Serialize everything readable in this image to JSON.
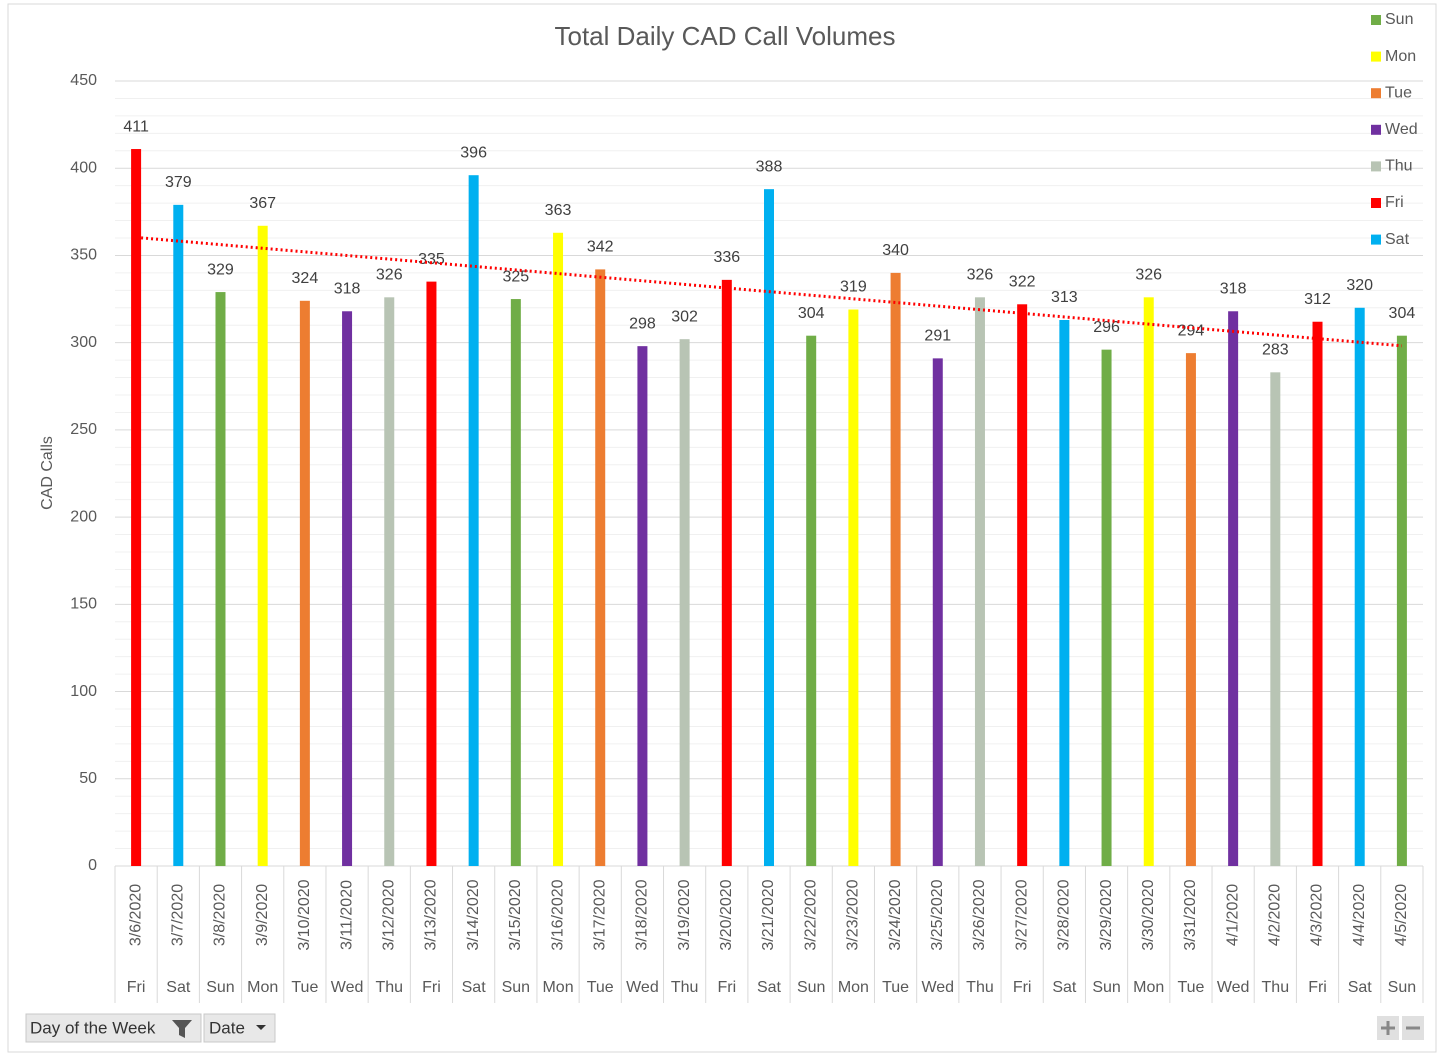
{
  "chart_data": {
    "type": "bar",
    "title": "Total Daily CAD Call Volumes",
    "y_label": "CAD Calls",
    "categories": [
      "3/6/2020",
      "3/7/2020",
      "3/8/2020",
      "3/9/2020",
      "3/10/2020",
      "3/11/2020",
      "3/12/2020",
      "3/13/2020",
      "3/14/2020",
      "3/15/2020",
      "3/16/2020",
      "3/17/2020",
      "3/18/2020",
      "3/19/2020",
      "3/20/2020",
      "3/21/2020",
      "3/22/2020",
      "3/23/2020",
      "3/24/2020",
      "3/25/2020",
      "3/26/2020",
      "3/27/2020",
      "3/28/2020",
      "3/29/2020",
      "3/30/2020",
      "3/31/2020",
      "4/1/2020",
      "4/2/2020",
      "4/3/2020",
      "4/4/2020",
      "4/5/2020"
    ],
    "day_labels": [
      "Fri",
      "Sat",
      "Sun",
      "Mon",
      "Tue",
      "Wed",
      "Thu",
      "Fri",
      "Sat",
      "Sun",
      "Mon",
      "Tue",
      "Wed",
      "Thu",
      "Fri",
      "Sat",
      "Sun",
      "Mon",
      "Tue",
      "Wed",
      "Thu",
      "Fri",
      "Sat",
      "Sun",
      "Mon",
      "Tue",
      "Wed",
      "Thu",
      "Fri",
      "Sat",
      "Sun"
    ],
    "series": [
      {
        "name": "Sun",
        "color": "#70ad47",
        "values": [
          null,
          null,
          329,
          null,
          null,
          null,
          null,
          null,
          null,
          325,
          null,
          null,
          null,
          null,
          null,
          null,
          304,
          null,
          null,
          null,
          null,
          null,
          null,
          296,
          null,
          null,
          null,
          null,
          null,
          null,
          304
        ]
      },
      {
        "name": "Mon",
        "color": "#ffff00",
        "values": [
          null,
          null,
          null,
          367,
          null,
          null,
          null,
          null,
          null,
          null,
          363,
          null,
          null,
          null,
          null,
          null,
          null,
          319,
          null,
          null,
          null,
          null,
          null,
          null,
          326,
          null,
          null,
          null,
          null,
          null,
          null
        ]
      },
      {
        "name": "Tue",
        "color": "#ed7d31",
        "values": [
          null,
          null,
          null,
          null,
          324,
          null,
          null,
          null,
          null,
          null,
          null,
          342,
          null,
          null,
          null,
          null,
          null,
          null,
          340,
          null,
          null,
          null,
          null,
          null,
          null,
          294,
          null,
          null,
          null,
          null,
          null
        ]
      },
      {
        "name": "Wed",
        "color": "#7030a0",
        "values": [
          null,
          null,
          null,
          null,
          null,
          318,
          null,
          null,
          null,
          null,
          null,
          null,
          298,
          null,
          null,
          null,
          null,
          null,
          null,
          291,
          null,
          null,
          null,
          null,
          null,
          null,
          318,
          null,
          null,
          null,
          null
        ]
      },
      {
        "name": "Thu",
        "color": "#b8c4b4",
        "values": [
          null,
          null,
          null,
          null,
          null,
          null,
          326,
          null,
          null,
          null,
          null,
          null,
          null,
          302,
          null,
          null,
          null,
          null,
          null,
          null,
          326,
          null,
          null,
          null,
          null,
          null,
          null,
          283,
          null,
          null,
          null
        ]
      },
      {
        "name": "Fri",
        "color": "#ff0000",
        "values": [
          411,
          null,
          null,
          null,
          null,
          null,
          null,
          335,
          null,
          null,
          null,
          null,
          null,
          null,
          336,
          null,
          null,
          null,
          null,
          null,
          null,
          322,
          null,
          null,
          null,
          null,
          null,
          null,
          312,
          null,
          null
        ]
      },
      {
        "name": "Sat",
        "color": "#00b0f0",
        "values": [
          null,
          379,
          null,
          null,
          null,
          null,
          null,
          null,
          396,
          null,
          null,
          null,
          null,
          null,
          null,
          388,
          null,
          null,
          null,
          null,
          null,
          null,
          313,
          null,
          null,
          null,
          null,
          null,
          null,
          320,
          null
        ]
      }
    ],
    "ylim": [
      0,
      450
    ],
    "yticks": [
      0,
      50,
      100,
      150,
      200,
      250,
      300,
      350,
      400,
      450
    ],
    "grid": true,
    "minor_grid": true,
    "legend": "right",
    "trendline": {
      "type": "linear",
      "color": "#ff0000"
    },
    "field_buttons": [
      "Day of the Week",
      "Date"
    ]
  }
}
